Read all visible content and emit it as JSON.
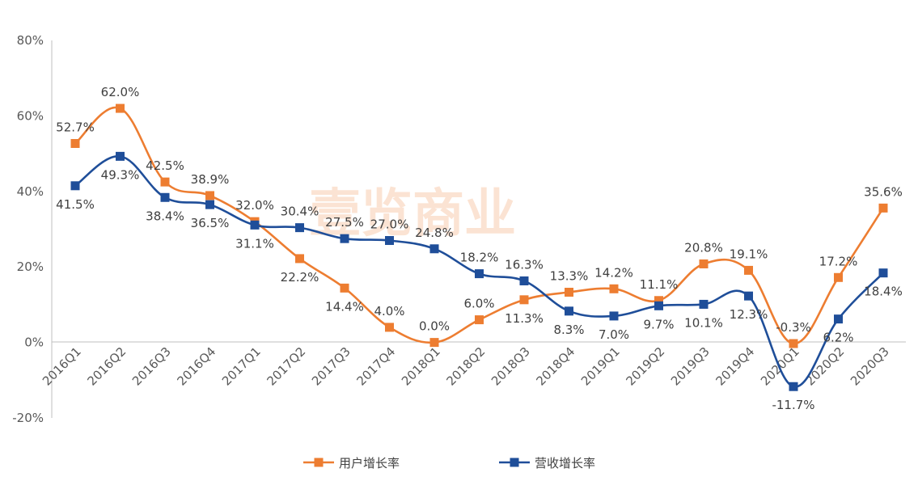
{
  "chart_data": {
    "type": "line",
    "categories": [
      "2016Q1",
      "2016Q2",
      "2016Q3",
      "2016Q4",
      "2017Q1",
      "2017Q2",
      "2017Q3",
      "2017Q4",
      "2018Q1",
      "2018Q2",
      "2018Q3",
      "2018Q4",
      "2019Q1",
      "2019Q2",
      "2019Q3",
      "2019Q4",
      "2020Q1",
      "2020Q2",
      "2020Q3"
    ],
    "series": [
      {
        "name": "用户增长率",
        "color": "#ed7d31",
        "values": [
          52.7,
          62.0,
          42.5,
          38.9,
          32.0,
          22.2,
          14.4,
          4.0,
          0.0,
          6.0,
          11.3,
          13.3,
          14.2,
          11.1,
          20.8,
          19.1,
          -0.3,
          17.2,
          35.6
        ],
        "labels": [
          "52.7%",
          "62.0%",
          "42.5%",
          "38.9%",
          "32.0%",
          "22.2%",
          "14.4%",
          "4.0%",
          "0.0%",
          "6.0%",
          "11.3%",
          "13.3%",
          "14.2%",
          "11.1%",
          "20.8%",
          "19.1%",
          "-0.3%",
          "17.2%",
          "35.6%"
        ]
      },
      {
        "name": "营收增长率",
        "color": "#1f4e99",
        "values": [
          41.5,
          49.3,
          38.4,
          36.5,
          31.1,
          30.4,
          27.5,
          27.0,
          24.8,
          18.2,
          16.3,
          8.3,
          7.0,
          9.7,
          10.1,
          12.3,
          -11.7,
          6.2,
          18.4
        ],
        "labels": [
          "41.5%",
          "49.3%",
          "38.4%",
          "36.5%",
          "31.1%",
          "30.4%",
          "27.5%",
          "27.0%",
          "24.8%",
          "18.2%",
          "16.3%",
          "8.3%",
          "7.0%",
          "9.7%",
          "10.1%",
          "12.3%",
          "-11.7%",
          "6.2%",
          "18.4%"
        ]
      }
    ],
    "yticks": [
      "80%",
      "60%",
      "40%",
      "20%",
      "0%",
      "-20%"
    ],
    "ylim": [
      -20,
      80
    ],
    "grid": false,
    "legend_position": "bottom",
    "watermark": "壹览商业"
  }
}
